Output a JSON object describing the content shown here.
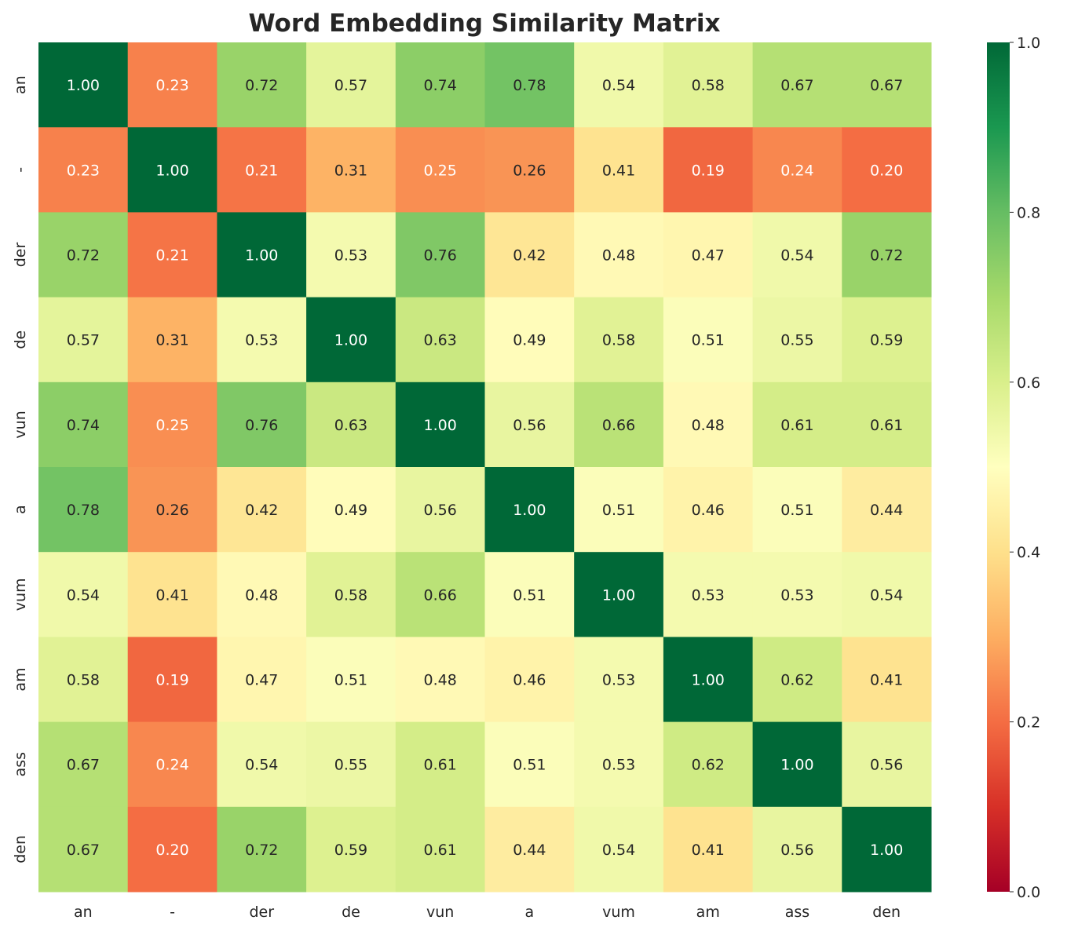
{
  "chart_data": {
    "type": "heatmap",
    "title": "Word Embedding Similarity Matrix",
    "x_labels": [
      "an",
      "-",
      "der",
      "de",
      "vun",
      "a",
      "vum",
      "am",
      "ass",
      "den"
    ],
    "y_labels": [
      "an",
      "-",
      "der",
      "de",
      "vun",
      "a",
      "vum",
      "am",
      "ass",
      "den"
    ],
    "values": [
      [
        1.0,
        0.23,
        0.72,
        0.57,
        0.74,
        0.78,
        0.54,
        0.58,
        0.67,
        0.67
      ],
      [
        0.23,
        1.0,
        0.21,
        0.31,
        0.25,
        0.26,
        0.41,
        0.19,
        0.24,
        0.2
      ],
      [
        0.72,
        0.21,
        1.0,
        0.53,
        0.76,
        0.42,
        0.48,
        0.47,
        0.54,
        0.72
      ],
      [
        0.57,
        0.31,
        0.53,
        1.0,
        0.63,
        0.49,
        0.58,
        0.51,
        0.55,
        0.59
      ],
      [
        0.74,
        0.25,
        0.76,
        0.63,
        1.0,
        0.56,
        0.66,
        0.48,
        0.61,
        0.61
      ],
      [
        0.78,
        0.26,
        0.42,
        0.49,
        0.56,
        1.0,
        0.51,
        0.46,
        0.51,
        0.44
      ],
      [
        0.54,
        0.41,
        0.48,
        0.58,
        0.66,
        0.51,
        1.0,
        0.53,
        0.53,
        0.54
      ],
      [
        0.58,
        0.19,
        0.47,
        0.51,
        0.48,
        0.46,
        0.53,
        1.0,
        0.62,
        0.41
      ],
      [
        0.67,
        0.24,
        0.54,
        0.55,
        0.61,
        0.51,
        0.53,
        0.62,
        1.0,
        0.56
      ],
      [
        0.67,
        0.2,
        0.72,
        0.59,
        0.61,
        0.44,
        0.54,
        0.41,
        0.56,
        1.0
      ]
    ],
    "annotation_format": "0.00",
    "colormap": "RdYlGn",
    "colormap_stops": [
      "#a50026",
      "#d73027",
      "#f46d43",
      "#fdae61",
      "#fee08b",
      "#ffffbf",
      "#d9ef8b",
      "#a6d96a",
      "#66bd63",
      "#1a9850",
      "#006837"
    ],
    "vmin": 0.0,
    "vmax": 1.0,
    "colorbar_ticks": [
      "0.0",
      "0.2",
      "0.4",
      "0.6",
      "0.8",
      "1.0"
    ],
    "colorbar_placement": "right",
    "grid": false
  }
}
